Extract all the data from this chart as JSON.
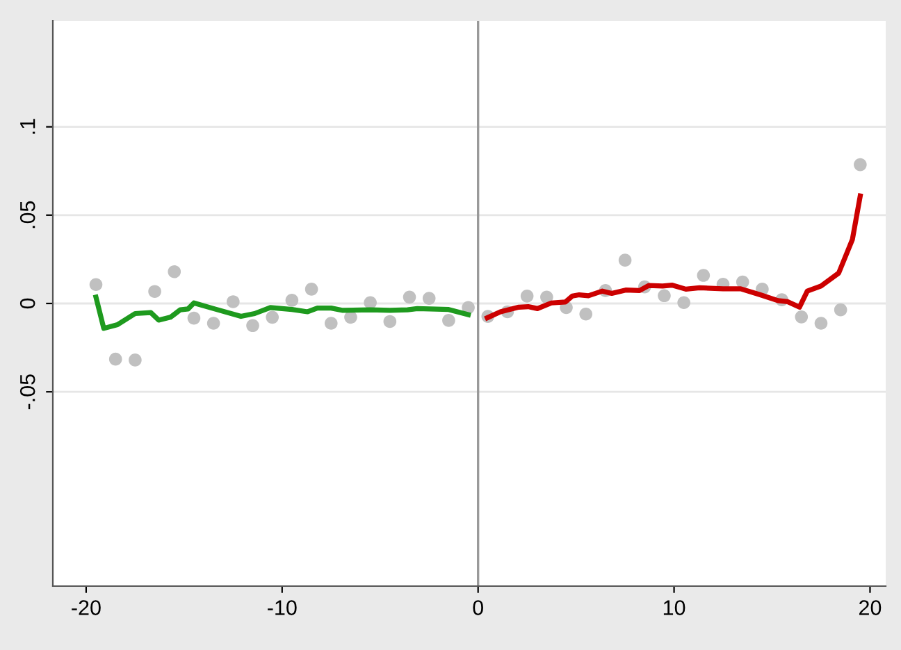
{
  "chart_data": {
    "type": "scatter",
    "xlim": [
      -21.7,
      20.8
    ],
    "ylim": [
      -0.16,
      0.16
    ],
    "xticks": [
      -20,
      -10,
      0,
      10,
      20
    ],
    "yticks": [
      {
        "value": -0.05,
        "label": "-.05"
      },
      {
        "value": 0,
        "label": "0"
      },
      {
        "value": 0.05,
        "label": ".05"
      },
      {
        "value": 0.1,
        "label": ".1"
      }
    ],
    "grid": "y",
    "marker": "circle",
    "ref_lines": [
      {
        "axis": "x",
        "value": 0,
        "color": "#999999"
      }
    ],
    "series": [
      {
        "color": "#c0c0c0",
        "x": [
          -19.5,
          -18.5,
          -17.5,
          -16.5,
          -15.5,
          -14.5,
          -13.5,
          -12.5,
          -11.5,
          -10.5,
          -9.5,
          -8.5,
          -7.5,
          -6.5,
          -5.5,
          -4.5,
          -3.5,
          -2.5,
          -1.5,
          -0.5
        ],
        "values": [
          0.0107,
          -0.0315,
          -0.032,
          0.0068,
          0.018,
          -0.0083,
          -0.0112,
          0.001,
          -0.0125,
          -0.0078,
          0.0018,
          0.0081,
          -0.0112,
          -0.0078,
          0.0005,
          -0.0102,
          0.0036,
          0.0029,
          -0.0096,
          -0.0023
        ]
      },
      {
        "color": "#c0c0c0",
        "x": [
          0.5,
          1.5,
          2.5,
          3.5,
          4.5,
          5.5,
          6.5,
          7.5,
          8.5,
          9.5,
          10.5,
          11.5,
          12.5,
          13.5,
          14.5,
          15.5,
          16.5,
          17.5,
          18.5,
          19.5
        ],
        "values": [
          -0.0073,
          -0.0047,
          0.0042,
          0.0036,
          -0.0023,
          -0.006,
          0.0073,
          0.0245,
          0.0094,
          0.0044,
          0.0005,
          0.0159,
          0.0109,
          0.0122,
          0.0081,
          0.0021,
          -0.0076,
          -0.0112,
          -0.0036,
          0.0786
        ]
      },
      {
        "type": "line",
        "color": "#1e9a1e",
        "marker": "none",
        "x": [
          -19.5,
          -19.1,
          -18.4,
          -17.5,
          -16.7,
          -16.3,
          -15.7,
          -15.2,
          -14.8,
          -14.5,
          -13.5,
          -12.1,
          -11.4,
          -10.6,
          -9.5,
          -8.7,
          -8.2,
          -7.5,
          -6.9,
          -5.5,
          -4.5,
          -3.6,
          -3.1,
          -1.5,
          -0.5
        ],
        "values": [
          0.0036,
          -0.0141,
          -0.012,
          -0.0057,
          -0.0052,
          -0.0094,
          -0.0078,
          -0.0036,
          -0.0031,
          0.0003,
          -0.0029,
          -0.0073,
          -0.0057,
          -0.0023,
          -0.0034,
          -0.0047,
          -0.0026,
          -0.0026,
          -0.0039,
          -0.0036,
          -0.0039,
          -0.0036,
          -0.0029,
          -0.0034,
          -0.0063
        ]
      },
      {
        "type": "line",
        "color": "#cc0000",
        "marker": "none",
        "x": [
          0.47,
          1.14,
          2.08,
          2.56,
          3.03,
          3.74,
          4.45,
          4.81,
          5.16,
          5.63,
          6.34,
          6.82,
          7.53,
          8.24,
          8.71,
          9.42,
          9.89,
          10.6,
          11.3,
          12.5,
          13.4,
          14.4,
          15.3,
          15.8,
          16.4,
          16.8,
          17.5,
          18.4,
          19.1,
          19.5
        ],
        "values": [
          -0.0081,
          -0.0047,
          -0.0021,
          -0.0018,
          -0.0029,
          0.0003,
          0.0008,
          0.0042,
          0.0049,
          0.0044,
          0.007,
          0.0057,
          0.0076,
          0.0073,
          0.0102,
          0.0099,
          0.0104,
          0.0081,
          0.0089,
          0.0083,
          0.0083,
          0.0049,
          0.0016,
          0.001,
          -0.0021,
          0.007,
          0.0099,
          0.0172,
          0.0362,
          0.0609
        ]
      }
    ]
  }
}
